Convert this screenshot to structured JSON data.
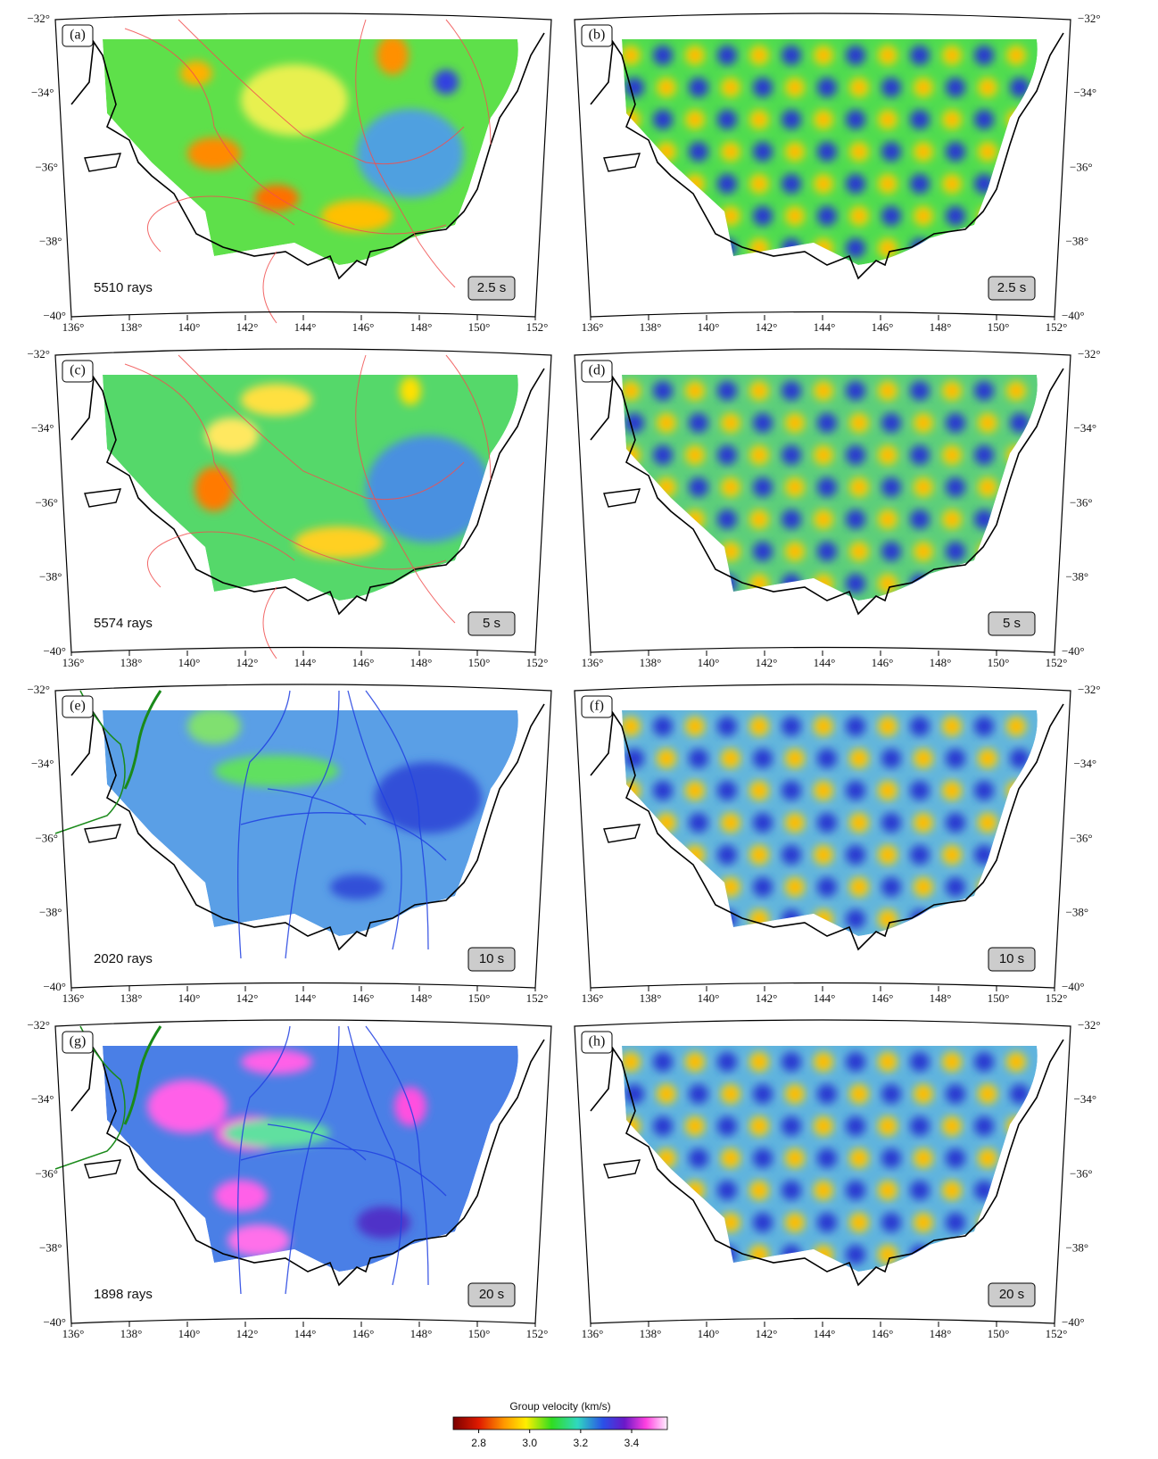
{
  "panels": [
    {
      "label": "(a)",
      "period": "2.5 s",
      "rays": "5510 rays"
    },
    {
      "label": "(b)",
      "period": "2.5 s"
    },
    {
      "label": "(c)",
      "period": "5 s",
      "rays": "5574 rays"
    },
    {
      "label": "(d)",
      "period": "5 s"
    },
    {
      "label": "(e)",
      "period": "10 s",
      "rays": "2020 rays"
    },
    {
      "label": "(f)",
      "period": "10 s"
    },
    {
      "label": "(g)",
      "period": "20 s",
      "rays": "1898 rays"
    },
    {
      "label": "(h)",
      "period": "20 s"
    }
  ],
  "lon_ticks": [
    "136°",
    "138°",
    "140°",
    "142°",
    "144°",
    "146°",
    "148°",
    "150°",
    "152°"
  ],
  "lat_ticks": [
    "−32°",
    "−34°",
    "−36°",
    "−38°",
    "−40°"
  ],
  "colorbar": {
    "title": "Group velocity (km/s)",
    "lim": [
      2.7,
      3.54
    ],
    "ticks": [
      2.8,
      {
        "value": 3,
        "label": "3.0"
      },
      3.2,
      3.4
    ]
  }
}
